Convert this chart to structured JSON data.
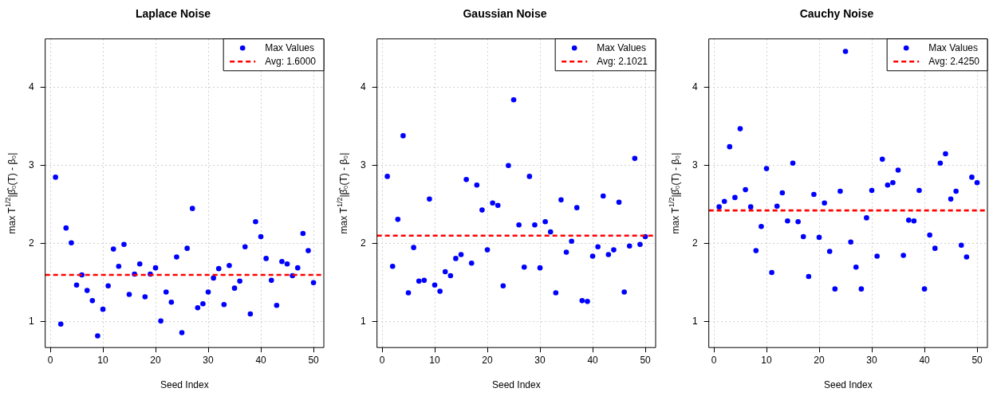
{
  "chart_data": [
    {
      "type": "scatter",
      "title": "Laplace Noise",
      "xlabel": "Seed Index",
      "ylabel": "max T$^{1/2}$|β̂₀(T) - β₀|",
      "x": [
        1,
        2,
        3,
        4,
        5,
        6,
        7,
        8,
        9,
        10,
        11,
        12,
        13,
        14,
        15,
        16,
        17,
        18,
        19,
        20,
        21,
        22,
        23,
        24,
        25,
        26,
        27,
        28,
        29,
        30,
        31,
        32,
        33,
        34,
        35,
        36,
        37,
        38,
        39,
        40,
        41,
        42,
        43,
        44,
        45,
        46,
        47,
        48,
        49,
        50
      ],
      "series": [
        {
          "name": "Max Values",
          "color": "#0000ff",
          "values": [
            2.85,
            0.97,
            2.2,
            2.01,
            1.47,
            1.6,
            1.4,
            1.27,
            0.82,
            1.16,
            1.46,
            1.93,
            1.71,
            1.99,
            1.35,
            1.61,
            1.74,
            1.32,
            1.61,
            1.69,
            1.01,
            1.38,
            1.25,
            1.83,
            0.86,
            1.94,
            2.45,
            1.18,
            1.23,
            1.38,
            1.56,
            1.68,
            1.22,
            1.72,
            1.43,
            1.52,
            1.96,
            1.1,
            2.28,
            2.09,
            1.81,
            1.53,
            1.21,
            1.77,
            1.74,
            1.59,
            1.69,
            2.13,
            1.91,
            1.5
          ]
        }
      ],
      "ref_lines": [
        {
          "axis": "y",
          "value": 1.6,
          "label": "Avg: 1.6000",
          "color": "#ff0000",
          "line_style": "dashed"
        }
      ],
      "xlim": [
        -0.96,
        51.96
      ],
      "xticks": [
        0,
        10,
        20,
        30,
        40,
        50
      ],
      "ylim": [
        0.67,
        4.62
      ],
      "yticks": [
        1,
        2,
        3,
        4
      ],
      "grid": true,
      "legend": "top right",
      "marker": "circle"
    },
    {
      "type": "scatter",
      "title": "Gaussian Noise",
      "xlabel": "Seed Index",
      "ylabel": "max T$^{1/2}$|β̂₀(T) - β₀|",
      "x": [
        1,
        2,
        3,
        4,
        5,
        6,
        7,
        8,
        9,
        10,
        11,
        12,
        13,
        14,
        15,
        16,
        17,
        18,
        19,
        20,
        21,
        22,
        23,
        24,
        25,
        26,
        27,
        28,
        29,
        30,
        31,
        32,
        33,
        34,
        35,
        36,
        37,
        38,
        39,
        40,
        41,
        42,
        43,
        44,
        45,
        46,
        47,
        48,
        49,
        50
      ],
      "series": [
        {
          "name": "Max Values",
          "color": "#0000ff",
          "values": [
            2.86,
            1.71,
            2.31,
            3.38,
            1.37,
            1.95,
            1.52,
            1.53,
            2.57,
            1.47,
            1.39,
            1.64,
            1.59,
            1.81,
            1.86,
            2.82,
            1.75,
            2.75,
            2.43,
            1.92,
            2.52,
            2.49,
            1.46,
            3.0,
            3.84,
            2.24,
            1.7,
            2.86,
            2.24,
            1.69,
            2.28,
            2.15,
            1.37,
            2.56,
            1.89,
            2.03,
            2.46,
            1.27,
            1.26,
            1.84,
            1.96,
            2.61,
            1.86,
            1.92,
            2.53,
            1.38,
            1.97,
            3.09,
            1.99,
            2.09
          ]
        }
      ],
      "ref_lines": [
        {
          "axis": "y",
          "value": 2.1021,
          "label": "Avg: 2.1021",
          "color": "#ff0000",
          "line_style": "dashed"
        }
      ],
      "xlim": [
        -0.96,
        51.96
      ],
      "xticks": [
        0,
        10,
        20,
        30,
        40,
        50
      ],
      "ylim": [
        0.67,
        4.62
      ],
      "yticks": [
        1,
        2,
        3,
        4
      ],
      "grid": true,
      "legend": "top right",
      "marker": "circle"
    },
    {
      "type": "scatter",
      "title": "Cauchy Noise",
      "xlabel": "Seed Index",
      "ylabel": "max T$^{1/2}$|β̂₀(T) - β₀|",
      "x": [
        1,
        2,
        3,
        4,
        5,
        6,
        7,
        8,
        9,
        10,
        11,
        12,
        13,
        14,
        15,
        16,
        17,
        18,
        19,
        20,
        21,
        22,
        23,
        24,
        25,
        26,
        27,
        28,
        29,
        30,
        31,
        32,
        33,
        34,
        35,
        36,
        37,
        38,
        39,
        40,
        41,
        42,
        43,
        44,
        45,
        46,
        47,
        48,
        49,
        50
      ],
      "series": [
        {
          "name": "Max Values",
          "color": "#0000ff",
          "values": [
            2.47,
            2.54,
            3.24,
            2.59,
            3.47,
            2.69,
            2.47,
            1.91,
            2.22,
            2.96,
            1.63,
            2.48,
            2.65,
            2.29,
            3.03,
            2.28,
            2.09,
            1.58,
            2.63,
            2.08,
            2.52,
            1.9,
            1.42,
            2.67,
            4.46,
            2.02,
            1.7,
            1.42,
            2.33,
            2.68,
            1.84,
            3.08,
            2.75,
            2.78,
            2.94,
            1.85,
            2.3,
            2.29,
            2.68,
            1.42,
            2.11,
            1.94,
            3.03,
            3.15,
            2.57,
            2.67,
            1.98,
            1.83,
            2.85,
            2.78
          ]
        }
      ],
      "ref_lines": [
        {
          "axis": "y",
          "value": 2.425,
          "label": "Avg: 2.4250",
          "color": "#ff0000",
          "line_style": "dashed"
        }
      ],
      "xlim": [
        -0.96,
        51.96
      ],
      "xticks": [
        0,
        10,
        20,
        30,
        40,
        50
      ],
      "ylim": [
        0.67,
        4.62
      ],
      "yticks": [
        1,
        2,
        3,
        4
      ],
      "grid": true,
      "legend": "top right",
      "marker": "circle"
    }
  ]
}
